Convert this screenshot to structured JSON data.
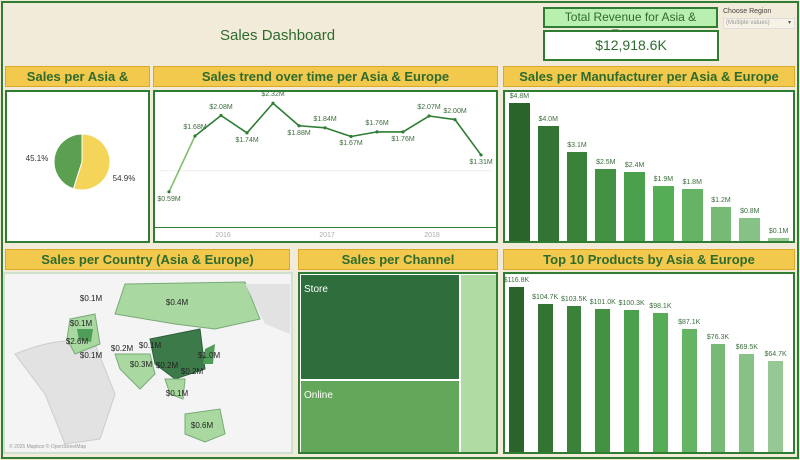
{
  "header": {
    "title": "Sales Dashboard",
    "kpi_label": "Total Revenue for Asia & Europe",
    "kpi_value": "$12,918.6K",
    "filter_label": "Choose Region",
    "filter_value": "(Multiple values)"
  },
  "panels": {
    "pie": "Sales per Asia & Europe",
    "trend": "Sales trend over time per Asia & Europe",
    "manufacturer": "Sales per Manufacturer per Asia & Europe",
    "country": "Sales per Country (Asia & Europe)",
    "channel": "Sales per Channel",
    "products": "Top 10 Products by Asia & Europe"
  },
  "colors": {
    "dark": "#2e7d32",
    "yellow": "#f2c94c",
    "light": "#a5d6a7"
  },
  "chart_data": [
    {
      "type": "pie",
      "values": [
        45.1,
        54.9
      ],
      "labels": [
        "45.1%",
        "54.9%"
      ],
      "colors": [
        "#5aa050",
        "#f5d45a"
      ]
    },
    {
      "type": "line",
      "x_ticks": [
        "2016",
        "2017",
        "2018"
      ],
      "values": [
        0.59,
        1.68,
        2.08,
        1.74,
        2.32,
        1.88,
        1.84,
        1.67,
        1.76,
        1.76,
        2.07,
        2.0,
        1.31
      ],
      "labels": [
        "$0.59M",
        "$1.68M",
        "$2.08M",
        "$1.74M",
        "$2.32M",
        "$1.88M",
        "$1.84M",
        "$1.67M",
        "$1.76M",
        "$1.76M",
        "$2.07M",
        "$2.00M",
        "$1.31M"
      ]
    },
    {
      "type": "bar",
      "values": [
        4.8,
        4.0,
        3.1,
        2.5,
        2.4,
        1.9,
        1.8,
        1.2,
        0.8,
        0.1
      ],
      "labels": [
        "$4.8M",
        "$4.0M",
        "$3.1M",
        "$2.5M",
        "$2.4M",
        "$1.9M",
        "$1.8M",
        "$1.2M",
        "$0.8M",
        "$0.1M"
      ]
    },
    {
      "type": "bar",
      "values": [
        116.8,
        104.7,
        103.5,
        101.0,
        100.3,
        98.1,
        87.1,
        76.3,
        69.5,
        64.7
      ],
      "labels": [
        "$116.8K",
        "$104.7K",
        "$103.5K",
        "$101.0K",
        "$100.3K",
        "$98.1K",
        "$87.1K",
        "$76.3K",
        "$69.5K",
        "$64.7K"
      ]
    }
  ],
  "map": {
    "labels": [
      "$0.1M",
      "$0.4M",
      "$0.1M",
      "$2.6M",
      "$0.1M",
      "$0.2M",
      "$0.1M",
      "$1.0M",
      "$0.3M",
      "$0.2M",
      "$0.2M",
      "$0.1M",
      "$0.6M"
    ],
    "attribution": "© 2025 Mapbox © OpenStreetMap"
  },
  "channel": {
    "items": [
      "Store",
      "Online"
    ]
  }
}
